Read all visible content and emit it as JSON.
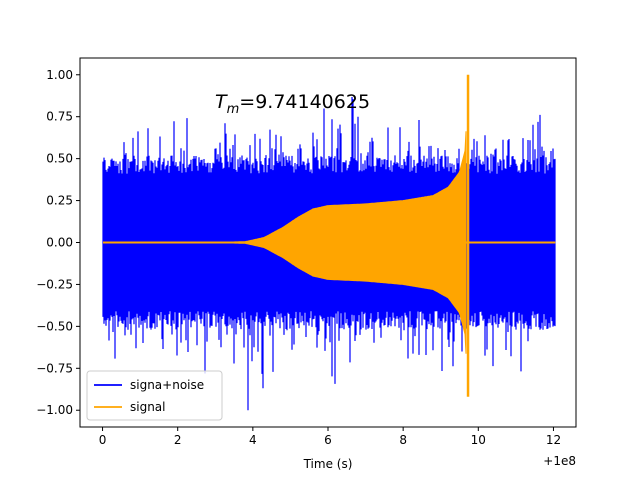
{
  "chart_data": {
    "type": "line",
    "title": "",
    "xlabel": "Time (s)",
    "ylabel": "",
    "x_offset_label": "+1e8",
    "xlim": [
      -0.6,
      12.6
    ],
    "ylim": [
      -1.1,
      1.1
    ],
    "xticks": [
      0,
      2,
      4,
      6,
      8,
      10,
      12
    ],
    "xtick_labels": [
      "0",
      "2",
      "4",
      "6",
      "8",
      "10",
      "12"
    ],
    "yticks": [
      -1.0,
      -0.75,
      -0.5,
      -0.25,
      0.0,
      0.25,
      0.5,
      0.75,
      1.0
    ],
    "ytick_labels": [
      "−1.00",
      "−0.75",
      "−0.50",
      "−0.25",
      "0.00",
      "0.25",
      "0.50",
      "0.75",
      "1.00"
    ],
    "grid": false,
    "legend_position": "lower-left",
    "annotation": {
      "symbol": "T",
      "subscript": "m",
      "value": "=9.74140625"
    },
    "series": [
      {
        "name": "signa+noise",
        "color": "#0000ff",
        "x_range": [
          0,
          12.05
        ],
        "amplitude_typical": 0.5,
        "max": 0.98,
        "min": -1.0
      },
      {
        "name": "signal",
        "color": "#ffa500",
        "envelope": [
          {
            "x": 0.0,
            "y": 0.0
          },
          {
            "x": 3.0,
            "y": 0.0
          },
          {
            "x": 3.8,
            "y": 0.005
          },
          {
            "x": 4.3,
            "y": 0.03
          },
          {
            "x": 4.8,
            "y": 0.09
          },
          {
            "x": 5.2,
            "y": 0.15
          },
          {
            "x": 5.6,
            "y": 0.2
          },
          {
            "x": 6.0,
            "y": 0.22
          },
          {
            "x": 7.0,
            "y": 0.23
          },
          {
            "x": 8.0,
            "y": 0.25
          },
          {
            "x": 8.8,
            "y": 0.28
          },
          {
            "x": 9.2,
            "y": 0.33
          },
          {
            "x": 9.5,
            "y": 0.42
          },
          {
            "x": 9.65,
            "y": 0.55
          },
          {
            "x": 9.74,
            "y": 1.0
          }
        ],
        "peak_x": 9.74,
        "peak_max": 1.0,
        "peak_min": -0.92,
        "after_peak_value": 0.0,
        "x_end": 12.05
      }
    ]
  }
}
